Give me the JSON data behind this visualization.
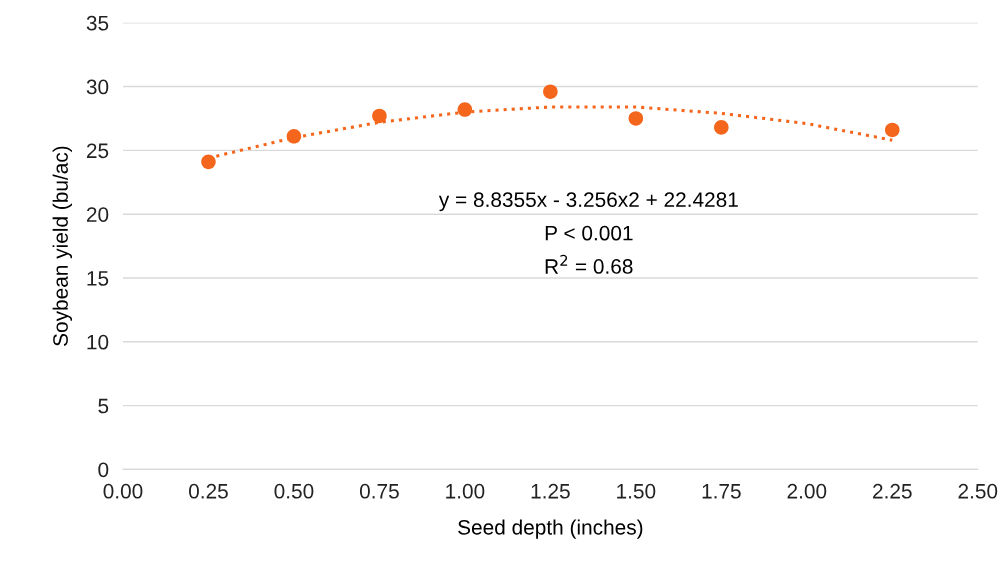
{
  "chart_data": {
    "type": "scatter",
    "xlabel": "Seed depth (inches)",
    "ylabel": "Soybean yield (bu/ac)",
    "series": [
      {
        "color": "#f4661b",
        "x": [
          0.25,
          0.5,
          0.75,
          1.0,
          1.25,
          1.5,
          1.75,
          2.25
        ],
        "values": [
          24.1,
          26.1,
          27.7,
          28.2,
          29.6,
          27.5,
          26.8,
          26.6
        ],
        "marker": "circle"
      },
      {
        "type": "line",
        "color": "#f4661b",
        "x": [
          0.25,
          0.5,
          0.75,
          1.0,
          1.25,
          1.5,
          1.75,
          2.0,
          2.25
        ],
        "values": [
          24.4,
          26.0,
          27.2,
          28.0,
          28.4,
          28.4,
          27.9,
          27.1,
          25.8
        ],
        "line_style": "dotted",
        "marker": "none"
      }
    ],
    "xlim": [
      0,
      2.5
    ],
    "xticks": [
      {
        "value": 0,
        "label": "0.00"
      },
      {
        "value": 0.25,
        "label": "0.25"
      },
      {
        "value": 0.5,
        "label": "0.50"
      },
      {
        "value": 0.75,
        "label": "0.75"
      },
      {
        "value": 1,
        "label": "1.00"
      },
      {
        "value": 1.25,
        "label": "1.25"
      },
      {
        "value": 1.5,
        "label": "1.50"
      },
      {
        "value": 1.75,
        "label": "1.75"
      },
      {
        "value": 2,
        "label": "2.00"
      },
      {
        "value": 2.25,
        "label": "2.25"
      },
      {
        "value": 2.5,
        "label": "2.50"
      }
    ],
    "ylim": [
      0,
      35
    ],
    "yticks": [
      0,
      5,
      10,
      15,
      20,
      25,
      30,
      35
    ],
    "grid": "y",
    "legend": false,
    "annotations": [
      "y = 8.8355x - 3.256x2 + 22.4281",
      "P < 0.001",
      "R$^{2}$ = 0.68"
    ]
  }
}
